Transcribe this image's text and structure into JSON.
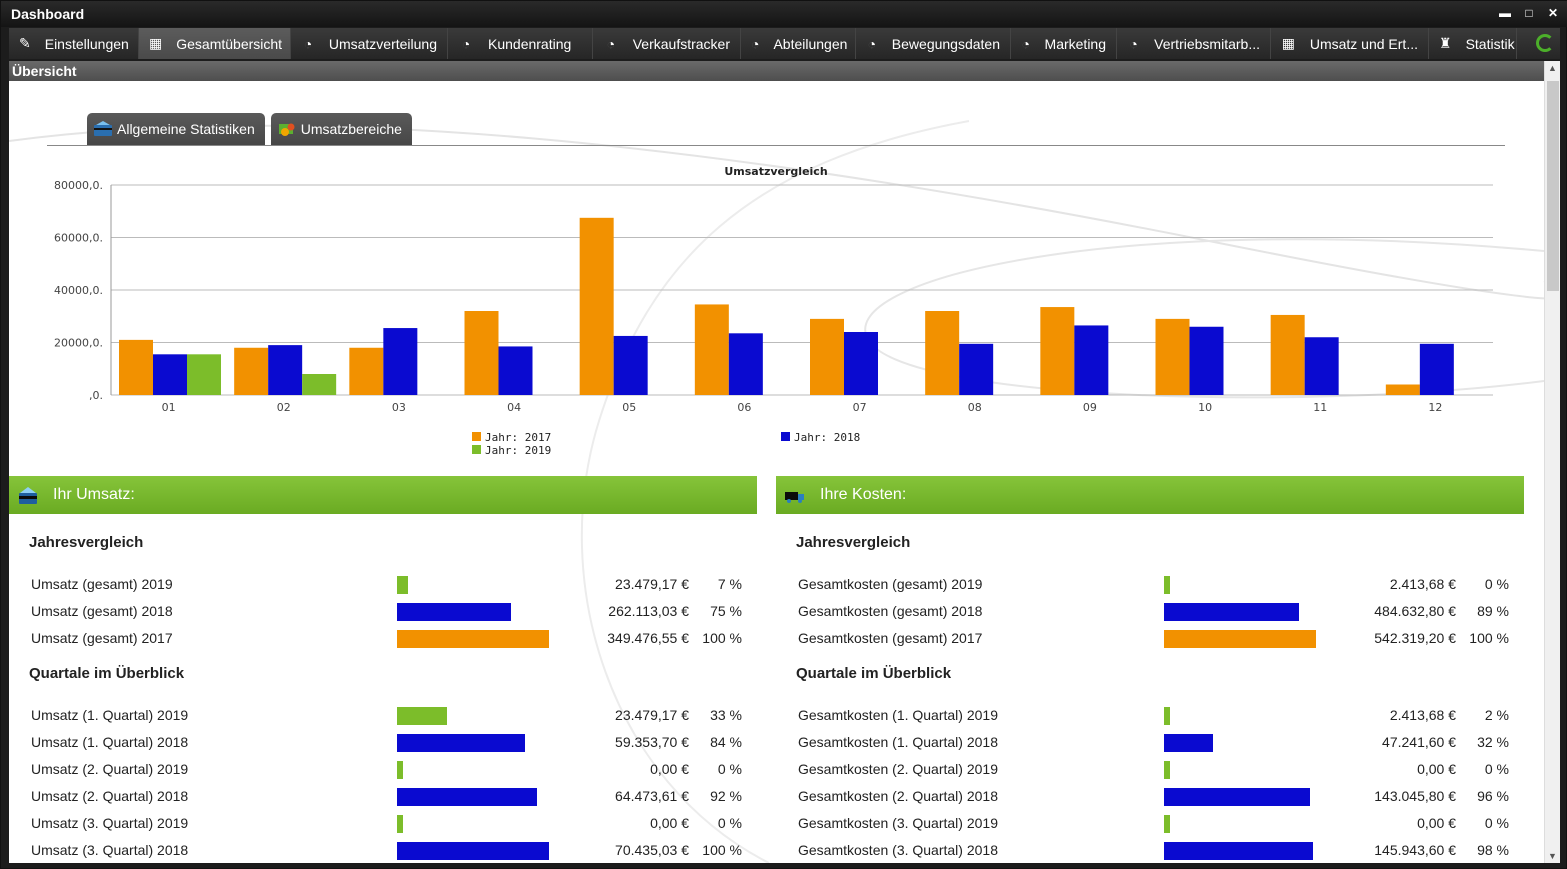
{
  "window": {
    "title": "Dashboard",
    "buttons": [
      "▬",
      "□",
      "✕"
    ]
  },
  "tabs": [
    {
      "label": "Einstellungen",
      "icon": "wrench-icon",
      "glyph": "✎",
      "active": false
    },
    {
      "label": "Gesamtübersicht",
      "icon": "grid-icon",
      "glyph": "▦",
      "active": true
    },
    {
      "label": "Umsatzverteilung",
      "icon": "pie-icon",
      "glyph": "◔",
      "active": false
    },
    {
      "label": "Kundenrating",
      "icon": "pie-icon",
      "glyph": "◔",
      "active": false
    },
    {
      "label": "Verkaufstracker",
      "icon": "pie-icon",
      "glyph": "◔",
      "active": false
    },
    {
      "label": "Abteilungen",
      "icon": "pie-icon",
      "glyph": "◔",
      "active": false
    },
    {
      "label": "Bewegungsdaten",
      "icon": "pie-icon",
      "glyph": "◔",
      "active": false
    },
    {
      "label": "Marketing",
      "icon": "pie-icon",
      "glyph": "◔",
      "active": false
    },
    {
      "label": "Vertriebsmitarb...",
      "icon": "pie-icon",
      "glyph": "◔",
      "active": false
    },
    {
      "label": "Umsatz und Ert...",
      "icon": "grid-icon",
      "glyph": "▦",
      "active": false
    },
    {
      "label": "Statistik",
      "icon": "rook-icon",
      "glyph": "♜",
      "active": false
    }
  ],
  "section_title": "Übersicht",
  "subtabs": [
    {
      "label": "Allgemeine Statistiken",
      "icon": "card-icon"
    },
    {
      "label": "Umsatzbereiche",
      "icon": "coins-icon"
    }
  ],
  "chart_data": {
    "type": "bar",
    "title": "Umsatzvergleich",
    "categories": [
      "01",
      "02",
      "03",
      "04",
      "05",
      "06",
      "07",
      "08",
      "09",
      "10",
      "11",
      "12"
    ],
    "ylim": [
      0,
      80000
    ],
    "yticks": [
      0,
      20000,
      40000,
      60000,
      80000
    ],
    "ytick_labels": [
      ",0.",
      "20000,0.",
      "40000,0.",
      "60000,0.",
      "80000,0."
    ],
    "grid": true,
    "legend_placement": "bottom",
    "series": [
      {
        "name": "Jahr: 2017",
        "color": "#f29100",
        "values": [
          21000,
          18000,
          18000,
          32000,
          67500,
          34500,
          29000,
          32000,
          33500,
          29000,
          30500,
          4000
        ]
      },
      {
        "name": "Jahr: 2018",
        "color": "#0a0ad0",
        "values": [
          15500,
          19000,
          25500,
          18500,
          22500,
          23500,
          24000,
          19500,
          26500,
          26000,
          22000,
          19500
        ]
      },
      {
        "name": "Jahr: 2019",
        "color": "#7cbd2a",
        "values": [
          15500,
          8000,
          0,
          0,
          0,
          0,
          0,
          0,
          0,
          0,
          0,
          0
        ]
      }
    ]
  },
  "colors": {
    "y2017": "#f29100",
    "y2018": "#0a0ad0",
    "y2019": "#7cbd2a",
    "accent_green": "#76b52c"
  },
  "umsatz": {
    "header": "Ihr Umsatz:",
    "jahres_title": "Jahresvergleich",
    "jahres": [
      {
        "label": "Umsatz (gesamt) 2019",
        "amount": "23.479,17 €",
        "pct": "7 %",
        "fraction": 0.07,
        "color": "#7cbd2a"
      },
      {
        "label": "Umsatz (gesamt) 2018",
        "amount": "262.113,03 €",
        "pct": "75 %",
        "fraction": 0.75,
        "color": "#0a0ad0"
      },
      {
        "label": "Umsatz (gesamt) 2017",
        "amount": "349.476,55 €",
        "pct": "100 %",
        "fraction": 1.0,
        "color": "#f29100"
      }
    ],
    "quartal_title": "Quartale im Überblick",
    "quartale": [
      {
        "label": "Umsatz (1. Quartal) 2019",
        "amount": "23.479,17 €",
        "pct": "33 %",
        "fraction": 0.33,
        "color": "#7cbd2a"
      },
      {
        "label": "Umsatz (1. Quartal) 2018",
        "amount": "59.353,70 €",
        "pct": "84 %",
        "fraction": 0.84,
        "color": "#0a0ad0"
      },
      {
        "label": "Umsatz (2. Quartal) 2019",
        "amount": "0,00 €",
        "pct": "0 %",
        "fraction": 0.0,
        "color": "#7cbd2a"
      },
      {
        "label": "Umsatz (2. Quartal) 2018",
        "amount": "64.473,61 €",
        "pct": "92 %",
        "fraction": 0.92,
        "color": "#0a0ad0"
      },
      {
        "label": "Umsatz (3. Quartal) 2019",
        "amount": "0,00 €",
        "pct": "0 %",
        "fraction": 0.0,
        "color": "#7cbd2a"
      },
      {
        "label": "Umsatz (3. Quartal) 2018",
        "amount": "70.435,03 €",
        "pct": "100 %",
        "fraction": 1.0,
        "color": "#0a0ad0"
      }
    ]
  },
  "kosten": {
    "header": "Ihre Kosten:",
    "jahres_title": "Jahresvergleich",
    "jahres": [
      {
        "label": "Gesamtkosten (gesamt) 2019",
        "amount": "2.413,68 €",
        "pct": "0 %",
        "fraction": 0.0,
        "color": "#7cbd2a"
      },
      {
        "label": "Gesamtkosten (gesamt) 2018",
        "amount": "484.632,80 €",
        "pct": "89 %",
        "fraction": 0.89,
        "color": "#0a0ad0"
      },
      {
        "label": "Gesamtkosten (gesamt) 2017",
        "amount": "542.319,20 €",
        "pct": "100 %",
        "fraction": 1.0,
        "color": "#f29100"
      }
    ],
    "quartal_title": "Quartale im Überblick",
    "quartale": [
      {
        "label": "Gesamtkosten (1. Quartal) 2019",
        "amount": "2.413,68 €",
        "pct": "2 %",
        "fraction": 0.02,
        "color": "#7cbd2a"
      },
      {
        "label": "Gesamtkosten (1. Quartal) 2018",
        "amount": "47.241,60 €",
        "pct": "32 %",
        "fraction": 0.32,
        "color": "#0a0ad0"
      },
      {
        "label": "Gesamtkosten (2. Quartal) 2019",
        "amount": "0,00 €",
        "pct": "0 %",
        "fraction": 0.0,
        "color": "#7cbd2a"
      },
      {
        "label": "Gesamtkosten (2. Quartal) 2018",
        "amount": "143.045,80 €",
        "pct": "96 %",
        "fraction": 0.96,
        "color": "#0a0ad0"
      },
      {
        "label": "Gesamtkosten (3. Quartal) 2019",
        "amount": "0,00 €",
        "pct": "0 %",
        "fraction": 0.0,
        "color": "#7cbd2a"
      },
      {
        "label": "Gesamtkosten (3. Quartal) 2018",
        "amount": "145.943,60 €",
        "pct": "98 %",
        "fraction": 0.98,
        "color": "#0a0ad0"
      }
    ]
  }
}
